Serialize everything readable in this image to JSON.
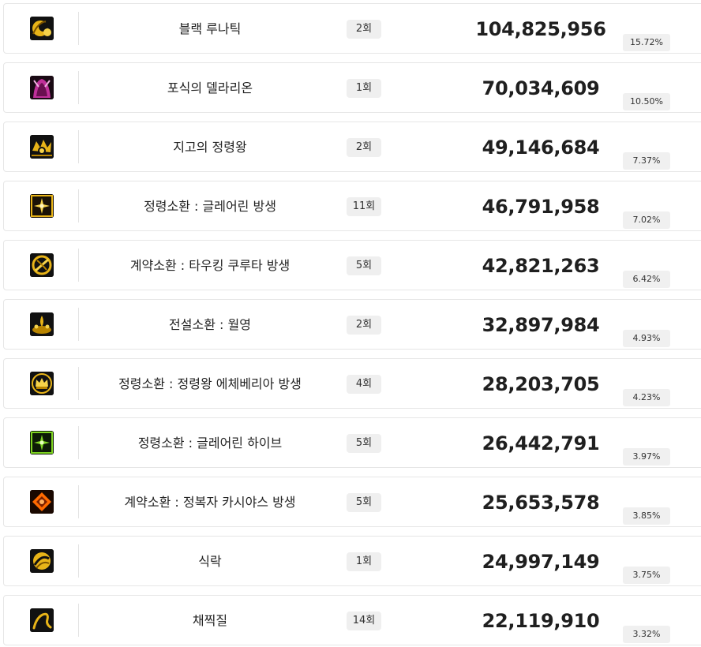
{
  "colors": {
    "row_border": "#e6e6e6",
    "badge_bg": "#efefef",
    "icon_gold": "#e8b418",
    "icon_green": "#7ed321",
    "icon_orange": "#ff6a00",
    "icon_magenta": "#c0309a"
  },
  "rows": [
    {
      "icon": "black-rune-icon",
      "name": "블랙 루나틱",
      "count": "2회",
      "damage": "104,825,956",
      "percent": "15.72%"
    },
    {
      "icon": "deliration-icon",
      "name": "포식의 델라리온",
      "count": "1회",
      "damage": "70,034,609",
      "percent": "10.50%"
    },
    {
      "icon": "spirit-king-icon",
      "name": "지고의 정령왕",
      "count": "2회",
      "damage": "49,146,684",
      "percent": "7.37%"
    },
    {
      "icon": "glare-summon-icon",
      "name": "정령소환 : 글레어린 방생",
      "count": "11회",
      "damage": "46,791,958",
      "percent": "7.02%"
    },
    {
      "icon": "contract-summon-icon",
      "name": "계약소환 : 타우킹 쿠루타 방생",
      "count": "5회",
      "damage": "42,821,263",
      "percent": "6.42%"
    },
    {
      "icon": "legend-summon-icon",
      "name": "전설소환 : 월영",
      "count": "2회",
      "damage": "32,897,984",
      "percent": "4.93%"
    },
    {
      "icon": "crown-summon-icon",
      "name": "정령소환 : 정령왕 에체베리아 방생",
      "count": "4회",
      "damage": "28,203,705",
      "percent": "4.23%"
    },
    {
      "icon": "glare-hive-icon",
      "name": "정령소환 : 글레어린 하이브",
      "count": "5회",
      "damage": "26,442,791",
      "percent": "3.97%"
    },
    {
      "icon": "conqueror-icon",
      "name": "계약소환 : 정복자 카시야스 방생",
      "count": "5회",
      "damage": "25,653,578",
      "percent": "3.85%"
    },
    {
      "icon": "devour-icon",
      "name": "식락",
      "count": "1회",
      "damage": "24,997,149",
      "percent": "3.75%"
    },
    {
      "icon": "whip-icon",
      "name": "채찍질",
      "count": "14회",
      "damage": "22,119,910",
      "percent": "3.32%"
    }
  ]
}
